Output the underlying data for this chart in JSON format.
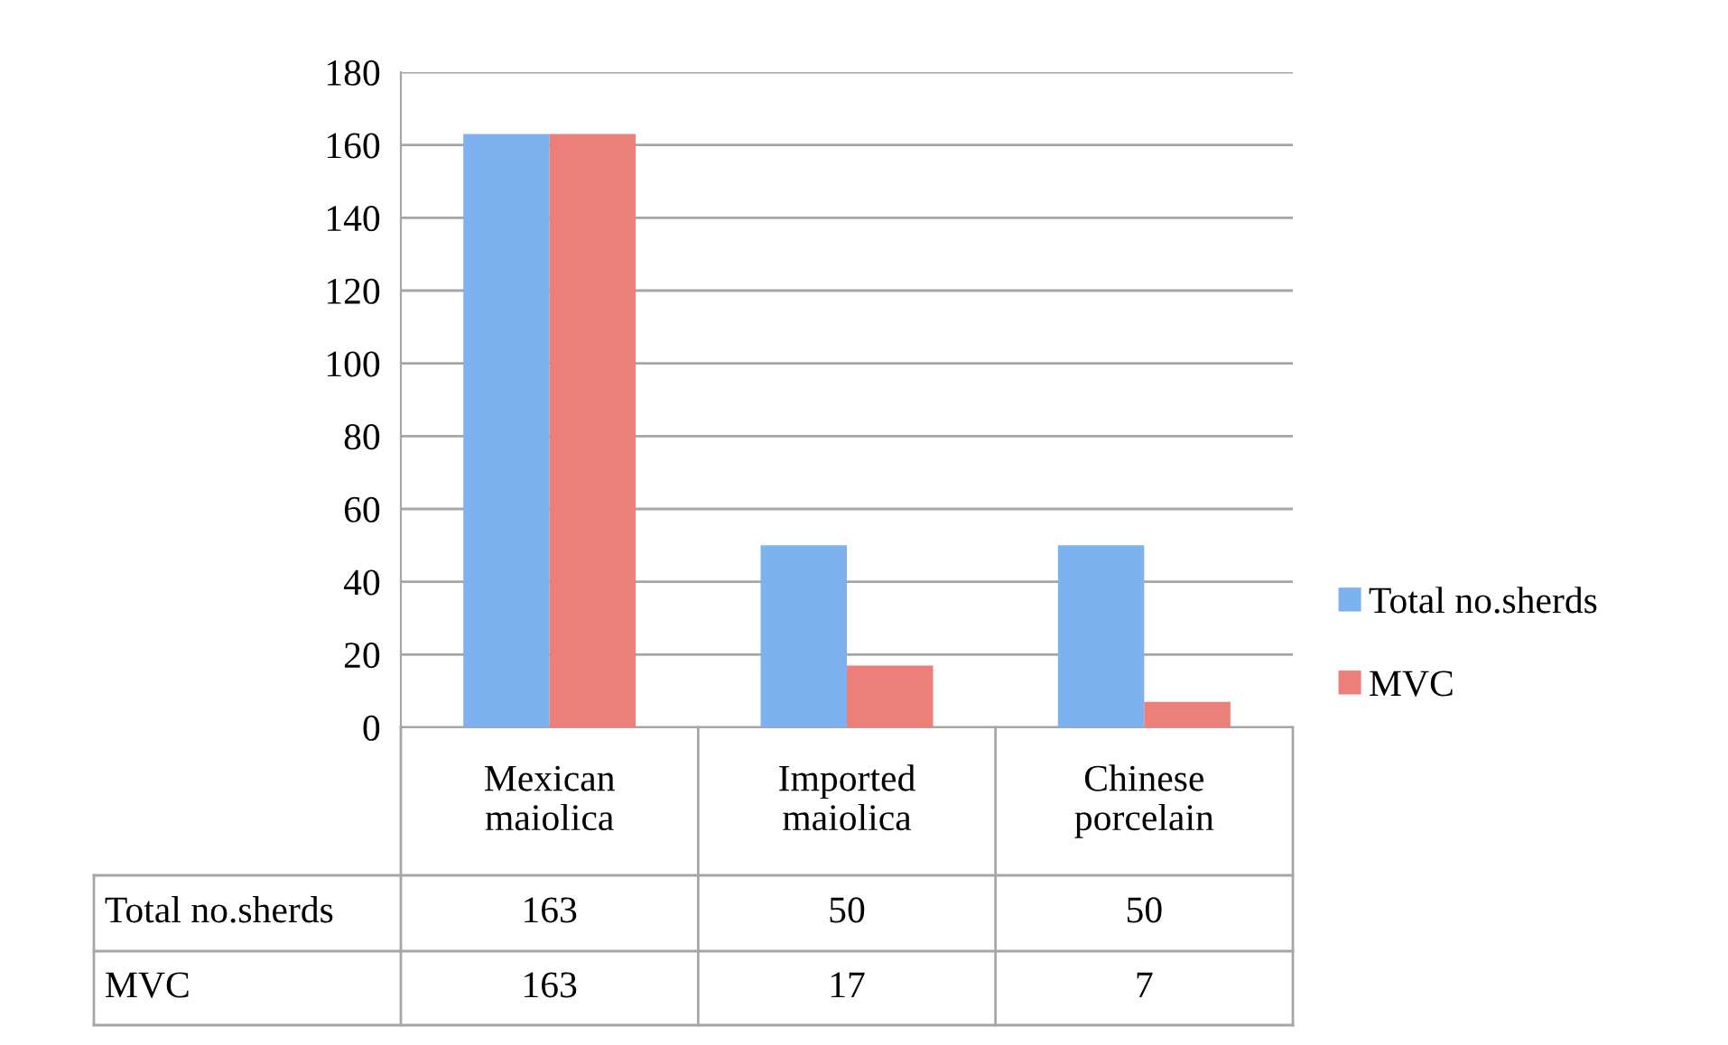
{
  "chart_data": {
    "type": "bar",
    "categories": [
      "Mexican\nmaiolica",
      "Imported\nmaiolica",
      "Chinese\nporcelain"
    ],
    "series": [
      {
        "name": "Total no.sherds",
        "color": "#7eb1ef",
        "values": [
          163,
          50,
          50
        ]
      },
      {
        "name": "MVC",
        "color": "#ec7f7a",
        "values": [
          163,
          17,
          7
        ]
      }
    ],
    "ylim": [
      0,
      180
    ],
    "yticks": [
      0,
      20,
      40,
      60,
      80,
      100,
      120,
      140,
      160,
      180
    ],
    "grid": "y",
    "legend": "right",
    "data_labels": true
  }
}
